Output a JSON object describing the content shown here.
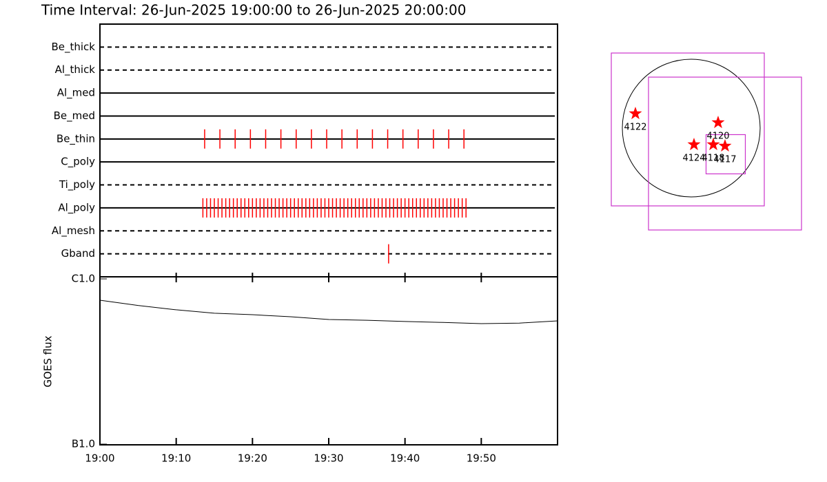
{
  "chart_data": [
    {
      "type": "timeline",
      "title": "Time Interval: 26-Jun-2025 19:00:00 to 26-Jun-2025 20:00:00",
      "categories": [
        "Be_thick",
        "Al_thick",
        "Al_med",
        "Be_med",
        "Be_thin",
        "C_poly",
        "Ti_poly",
        "Al_poly",
        "Al_mesh",
        "Gband"
      ],
      "line_styles": [
        "dashed",
        "dashed",
        "solid",
        "solid",
        "solid",
        "solid",
        "dashed",
        "solid",
        "dashed",
        "dashed"
      ],
      "color": "#ff0000",
      "xlim": [
        0,
        60
      ],
      "events": [
        [],
        [],
        [],
        [],
        [
          13.73,
          15.73,
          17.73,
          19.73,
          21.73,
          23.73,
          25.73,
          27.73,
          29.73,
          31.73,
          33.73,
          35.73,
          37.73,
          39.73,
          41.73,
          43.73,
          45.73,
          47.73
        ],
        [],
        [],
        [
          13.5,
          14,
          14.5,
          15,
          15.5,
          16,
          16.5,
          17,
          17.5,
          18,
          18.5,
          19,
          19.5,
          20,
          20.5,
          21,
          21.5,
          22,
          22.5,
          23,
          23.5,
          24,
          24.5,
          25,
          25.5,
          26,
          26.5,
          27,
          27.5,
          28,
          28.5,
          29,
          29.5,
          30,
          30.5,
          31,
          31.5,
          32,
          32.5,
          33,
          33.5,
          34,
          34.5,
          35,
          35.5,
          36,
          36.5,
          37,
          37.5,
          38,
          38.5,
          39,
          39.5,
          40,
          40.5,
          41,
          41.5,
          42,
          42.5,
          43,
          43.5,
          44,
          44.5,
          45,
          45.5,
          46,
          46.5,
          47,
          47.5,
          48
        ],
        [],
        [
          37.85
        ]
      ]
    },
    {
      "type": "line",
      "ylabel": "GOES flux",
      "log_scale": true,
      "color": "#000000",
      "x": [
        0,
        5,
        10,
        15,
        20,
        25,
        30,
        35,
        40,
        45,
        50,
        55,
        60
      ],
      "values": [
        7.43e-07,
        6.9e-07,
        6.5e-07,
        6.2e-07,
        6.07e-07,
        5.9e-07,
        5.68e-07,
        5.62e-07,
        5.52e-07,
        5.45e-07,
        5.36e-07,
        5.4e-07,
        5.57e-07
      ],
      "xlim": [
        0,
        60
      ],
      "xticks": [
        {
          "value": 0,
          "label": "19:00"
        },
        {
          "value": 10,
          "label": "19:10"
        },
        {
          "value": 20,
          "label": "19:20"
        },
        {
          "value": 30,
          "label": "19:30"
        },
        {
          "value": 40,
          "label": "19:40"
        },
        {
          "value": 50,
          "label": "19:50"
        }
      ],
      "ylim": [
        1e-07,
        1e-06
      ],
      "yticks": [
        {
          "value": 1e-07,
          "label": "B1.0"
        },
        {
          "value": 1e-06,
          "label": "C1.0"
        }
      ]
    },
    {
      "type": "map",
      "star_color": "#ff0000",
      "box_color": "#cc33cc",
      "points": [
        {
          "label": "4122",
          "x": -0.81,
          "y": 0.21
        },
        {
          "label": "4120",
          "x": 0.39,
          "y": 0.08
        },
        {
          "label": "4124",
          "x": 0.04,
          "y": -0.24
        },
        {
          "label": "4118",
          "x": 0.32,
          "y": -0.24
        },
        {
          "label": "4117",
          "x": 0.49,
          "y": -0.26
        }
      ],
      "boxes": [
        {
          "x": -0.05,
          "y": -0.02,
          "size": 2.22
        },
        {
          "x": 0.49,
          "y": -0.37,
          "size": 2.22
        },
        {
          "x": 0.5,
          "y": -0.38,
          "size": 0.57
        }
      ]
    }
  ]
}
